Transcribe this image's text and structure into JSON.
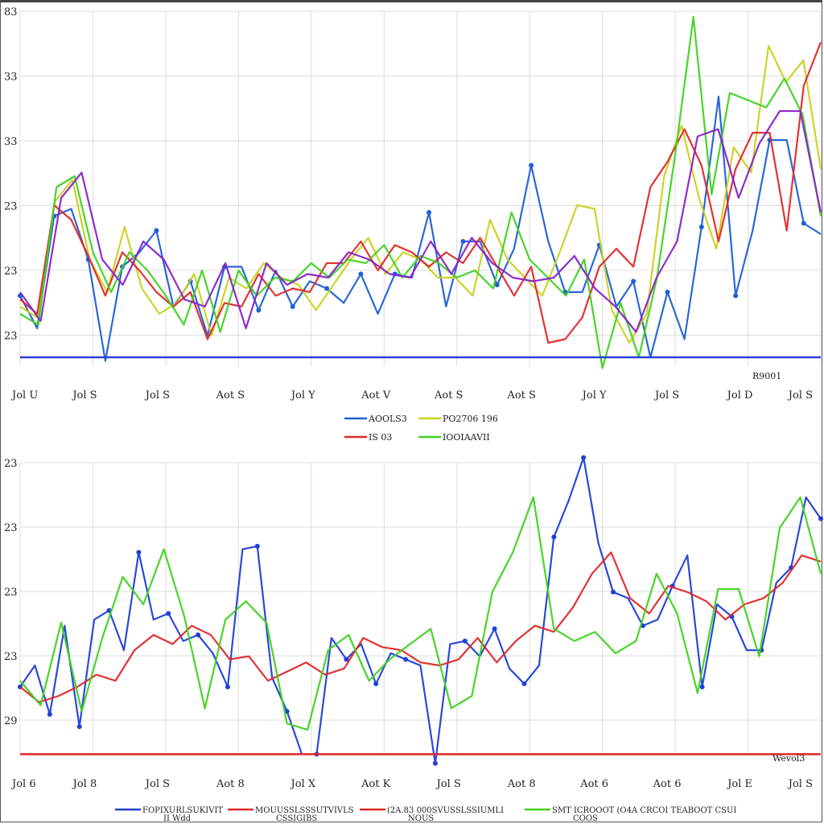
{
  "chart_data": [
    {
      "type": "line",
      "ylim": [
        0,
        100
      ],
      "grid": true,
      "yticks": [
        "83",
        "33",
        "33",
        "23",
        "23",
        "23"
      ],
      "xticks": [
        "Jol U",
        "Jol S",
        "Jol S",
        "Aot S",
        "Jol Y",
        "Aot V",
        "Aot S",
        "Aot S",
        "Jol Y",
        "Jol S",
        "Jol D",
        "Jol S"
      ],
      "annotation": "R9001",
      "baseline": {
        "value": 8,
        "color": "#2b3fd6"
      },
      "legend": [
        "AOOLS3",
        "PO2706 196",
        "IS 03",
        "IOOIAAVII"
      ],
      "series": [
        {
          "name": "AOOLS3",
          "color": "#1f5fd6",
          "values": [
            25,
            16,
            47,
            49,
            35,
            7,
            33,
            37,
            43,
            22,
            29,
            14,
            33,
            33,
            21,
            32,
            22,
            29,
            27,
            23,
            31,
            20,
            31,
            30,
            48,
            22,
            40,
            40,
            28,
            38,
            61,
            40,
            26,
            26,
            39,
            22,
            29,
            8,
            26,
            13,
            44,
            80,
            25,
            43,
            68,
            68,
            45,
            42
          ]
        },
        {
          "name": "PO2706 196",
          "color": "#c8d21e",
          "values": [
            22,
            19,
            51,
            57,
            35,
            26,
            44,
            27,
            20,
            23,
            31,
            14,
            30,
            27,
            34,
            30,
            28,
            21,
            28,
            35,
            41,
            31,
            37,
            35,
            30,
            30,
            25,
            46,
            35,
            30,
            25,
            37,
            50,
            49,
            21,
            12,
            20,
            58,
            72,
            52,
            38,
            66,
            59,
            94,
            84,
            90,
            60
          ]
        },
        {
          "name": "IS 03",
          "color": "#e02828",
          "values": [
            24,
            20,
            50,
            46,
            36,
            25,
            37,
            32,
            26,
            22,
            26,
            13,
            23,
            22,
            31,
            25,
            27,
            26,
            34,
            34,
            40,
            32,
            39,
            37,
            33,
            37,
            34,
            41,
            33,
            25,
            33,
            12,
            13,
            19,
            33,
            38,
            33,
            55,
            62,
            71,
            61,
            40,
            60,
            70,
            70,
            43,
            83,
            95
          ]
        },
        {
          "name": "IOOIAAVII",
          "color": "#3fd21e",
          "values": [
            20,
            17,
            55,
            58,
            37,
            26,
            37,
            32,
            25,
            17,
            32,
            15,
            32,
            25,
            30,
            29,
            34,
            30,
            35,
            34,
            39,
            30,
            36,
            34,
            30,
            32,
            27,
            48,
            35,
            30,
            25,
            35,
            5,
            23,
            8,
            30,
            64,
            102,
            53,
            81,
            79,
            77,
            85,
            75,
            47
          ]
        },
        {
          "name": "",
          "color": "#8a22c8",
          "values": [
            26,
            18,
            52,
            59,
            35,
            28,
            40,
            35,
            24,
            22,
            34,
            16,
            34,
            28,
            31,
            30,
            37,
            35,
            31,
            30,
            40,
            31,
            41,
            34,
            30,
            29,
            30,
            36,
            27,
            22,
            15,
            30,
            40,
            69,
            71,
            52,
            67,
            76,
            76,
            48
          ]
        }
      ]
    },
    {
      "type": "line",
      "ylim": [
        0,
        100
      ],
      "grid": true,
      "yticks": [
        "23",
        "23",
        "23",
        "23",
        "29"
      ],
      "xticks": [
        "Jol 6",
        "Jol 8",
        "Jol S",
        "Aot 8",
        "Jol X",
        "Aot K",
        "Jol S",
        "Aot 8",
        "Aot 6",
        "Aot 6",
        "Jol E",
        "Jol S"
      ],
      "annotation": "Wevol3",
      "baseline": {
        "value": 6,
        "color": "#e02828"
      },
      "legend": [
        {
          "name": "FOPIXURLSUKIVIT",
          "sub": "II Wdd"
        },
        {
          "name": "MOUUSSLSSSUTVIVLS",
          "sub": "CSSIGIBS"
        },
        {
          "name": "(2A.83 000SVUSSLSSIUMLI",
          "sub": "NOUS"
        },
        {
          "name": "SMT ICROOOT (O4A CRCOI TEABOOT CSUI",
          "sub": "COOS"
        }
      ],
      "series": [
        {
          "name": "FOPIXURLSUKIVIT",
          "color": "#1f3fd6",
          "values": [
            28,
            35,
            19,
            48,
            15,
            50,
            53,
            40,
            72,
            50,
            52,
            43,
            45,
            39,
            28,
            73,
            74,
            31,
            20,
            6,
            6,
            44,
            37,
            42,
            29,
            39,
            37,
            35,
            3,
            42,
            43,
            38,
            47,
            34,
            29,
            35,
            77,
            89,
            103,
            75,
            59,
            57,
            48,
            50,
            61,
            71,
            28,
            55,
            51,
            40,
            40,
            62,
            67,
            90,
            83
          ]
        },
        {
          "name": "MOUUSSLSSSUTVIVLS",
          "color": "#e02828",
          "values": [
            28,
            23,
            25,
            28,
            32,
            30,
            40,
            45,
            42,
            48,
            45,
            37,
            38,
            30,
            33,
            36,
            32,
            34,
            44,
            41,
            40,
            36,
            35,
            37,
            44,
            36,
            43,
            48,
            46,
            54,
            65,
            72,
            57,
            52,
            61,
            59,
            56,
            50,
            55,
            57,
            62,
            71,
            69
          ]
        },
        {
          "name": "SMT ICROOOT (O4A CRCOI TEABOOT CSUI",
          "color": "#3fd21e",
          "values": [
            30,
            22,
            49,
            20,
            44,
            64,
            55,
            73,
            51,
            21,
            50,
            56,
            49,
            16,
            14,
            40,
            45,
            30,
            37,
            42,
            47,
            21,
            25,
            59,
            72,
            90,
            47,
            43,
            46,
            39,
            43,
            65,
            52,
            26,
            60,
            60,
            38,
            80,
            90,
            65
          ]
        }
      ]
    }
  ]
}
